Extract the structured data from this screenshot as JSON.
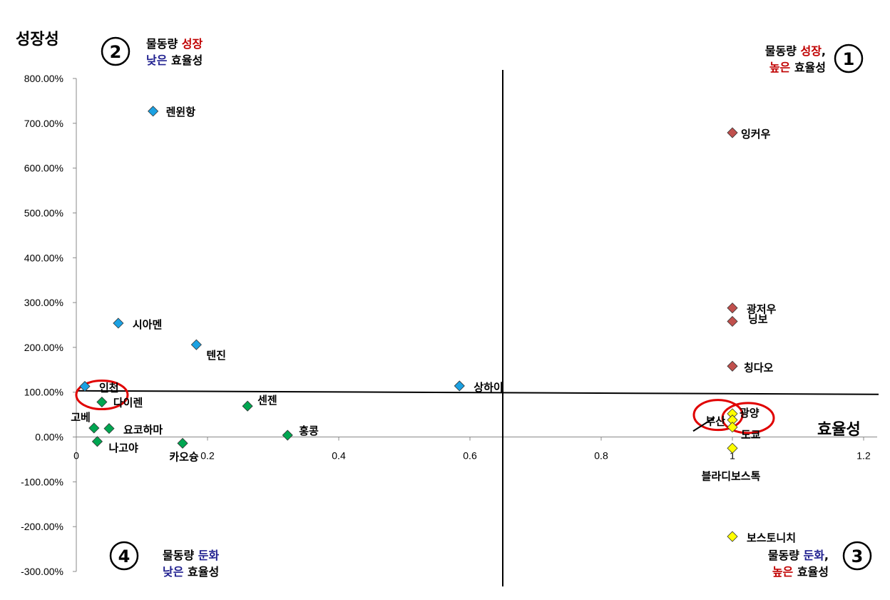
{
  "chart_data": {
    "type": "scatter",
    "xlabel": "효율성",
    "ylabel": "성장성",
    "xlim": [
      0,
      1.2
    ],
    "ylim": [
      -300,
      800
    ],
    "x_ticks": [
      0,
      0.2,
      0.4,
      0.6,
      0.8,
      1,
      1.2
    ],
    "x_tick_labels": [
      "0",
      "0.2",
      "0.4",
      "0.6",
      "0.8",
      "1",
      "1.2"
    ],
    "y_ticks": [
      800,
      700,
      600,
      500,
      400,
      300,
      200,
      100,
      0,
      -100,
      -200,
      -300
    ],
    "y_tick_labels": [
      "800.00%",
      "700.00%",
      "600.00%",
      "500.00%",
      "400.00%",
      "300.00%",
      "200.00%",
      "100.00%",
      "0.00%",
      "-100.00%",
      "-200.00%",
      "-300.00%"
    ],
    "divider": {
      "x": 0.65,
      "y": 100
    },
    "grid": false,
    "series": [
      {
        "color": "#1ba1e2",
        "points": [
          {
            "label": "렌윈항",
            "x": 0.117,
            "y": 727
          },
          {
            "label": "시아멘",
            "x": 0.064,
            "y": 254
          },
          {
            "label": "텐진",
            "x": 0.183,
            "y": 206
          },
          {
            "label": "인천",
            "x": 0.013,
            "y": 113
          },
          {
            "label": "상하이",
            "x": 0.584,
            "y": 114
          }
        ]
      },
      {
        "color": "#00a651",
        "points": [
          {
            "label": "다이렌",
            "x": 0.039,
            "y": 78
          },
          {
            "label": "센젠",
            "x": 0.261,
            "y": 69
          },
          {
            "label": "고베",
            "x": 0.027,
            "y": 20
          },
          {
            "label": "요코하마",
            "x": 0.05,
            "y": 19
          },
          {
            "label": "홍콩",
            "x": 0.322,
            "y": 4
          },
          {
            "label": "나고야",
            "x": 0.032,
            "y": -10
          },
          {
            "label": "카오슝",
            "x": 0.162,
            "y": -14
          }
        ]
      },
      {
        "color": "#c0504d",
        "points": [
          {
            "label": "잉커우",
            "x": 1.0,
            "y": 679
          },
          {
            "label": "광저우",
            "x": 1.0,
            "y": 288
          },
          {
            "label": "닝보",
            "x": 1.0,
            "y": 258
          },
          {
            "label": "칭다오",
            "x": 1.0,
            "y": 158
          }
        ]
      },
      {
        "color": "#ffff00",
        "points": [
          {
            "label": "광양",
            "x": 1.0,
            "y": 52
          },
          {
            "label": "부산",
            "x": 1.0,
            "y": 38
          },
          {
            "label": "도쿄",
            "x": 1.0,
            "y": 22
          },
          {
            "label": "블라디보스톡",
            "x": 1.0,
            "y": -25
          },
          {
            "label": "보스토니치",
            "x": 1.0,
            "y": -222
          }
        ]
      }
    ],
    "annotations": {
      "circled_points": [
        "인천",
        "광양",
        "부산"
      ],
      "quadrants": [
        {
          "number": "①",
          "line1": [
            {
              "text": "물동량 ",
              "color": "#000000"
            },
            {
              "text": "성장",
              "color": "#c00000"
            },
            {
              "text": ",",
              "color": "#000000"
            }
          ],
          "line2": [
            {
              "text": "높은",
              "color": "#c00000"
            },
            {
              "text": " 효율성",
              "color": "#000000"
            }
          ]
        },
        {
          "number": "②",
          "line1": [
            {
              "text": "물동량 ",
              "color": "#000000"
            },
            {
              "text": "성장",
              "color": "#c00000"
            }
          ],
          "line2": [
            {
              "text": "낮은",
              "color": "#1f1f8f"
            },
            {
              "text": " 효율성",
              "color": "#000000"
            }
          ]
        },
        {
          "number": "③",
          "line1": [
            {
              "text": "물동량 ",
              "color": "#000000"
            },
            {
              "text": "둔화",
              "color": "#1f1f8f"
            },
            {
              "text": ",",
              "color": "#000000"
            }
          ],
          "line2": [
            {
              "text": "높은",
              "color": "#c00000"
            },
            {
              "text": " 효율성",
              "color": "#000000"
            }
          ]
        },
        {
          "number": "④",
          "line1": [
            {
              "text": "물동량 ",
              "color": "#000000"
            },
            {
              "text": "둔화",
              "color": "#1f1f8f"
            }
          ],
          "line2": [
            {
              "text": "낮은",
              "color": "#1f1f8f"
            },
            {
              "text": " 효율성",
              "color": "#000000"
            }
          ]
        }
      ]
    }
  }
}
